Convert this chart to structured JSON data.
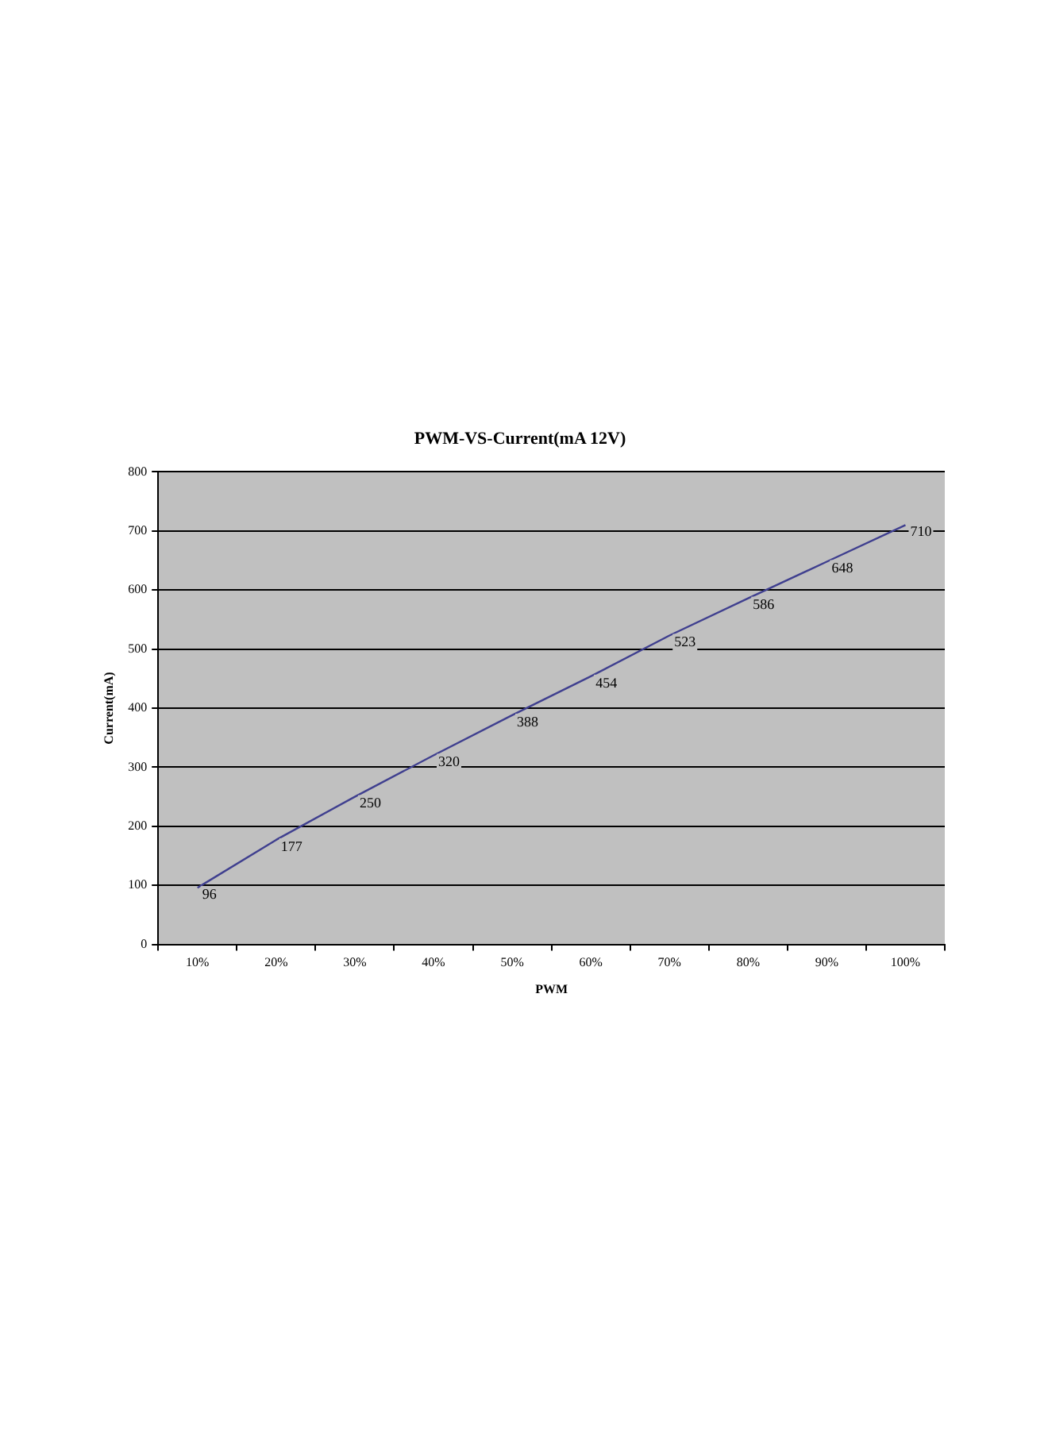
{
  "chart_data": {
    "type": "line",
    "title": "PWM-VS-Current(mA 12V)",
    "xlabel": "PWM",
    "ylabel": "Current(mA)",
    "categories": [
      "10%",
      "20%",
      "30%",
      "40%",
      "50%",
      "60%",
      "70%",
      "80%",
      "90%",
      "100%"
    ],
    "series": [
      {
        "color": "#3f3f8f",
        "values": [
          96,
          177,
          250,
          320,
          388,
          454,
          523,
          586,
          648,
          710
        ]
      }
    ],
    "ylim": [
      0,
      800
    ],
    "yticks": [
      0,
      100,
      200,
      300,
      400,
      500,
      600,
      700,
      800
    ],
    "grid": "y",
    "legend": false,
    "marker": "none",
    "line_style": "solid",
    "data_labels": true
  }
}
